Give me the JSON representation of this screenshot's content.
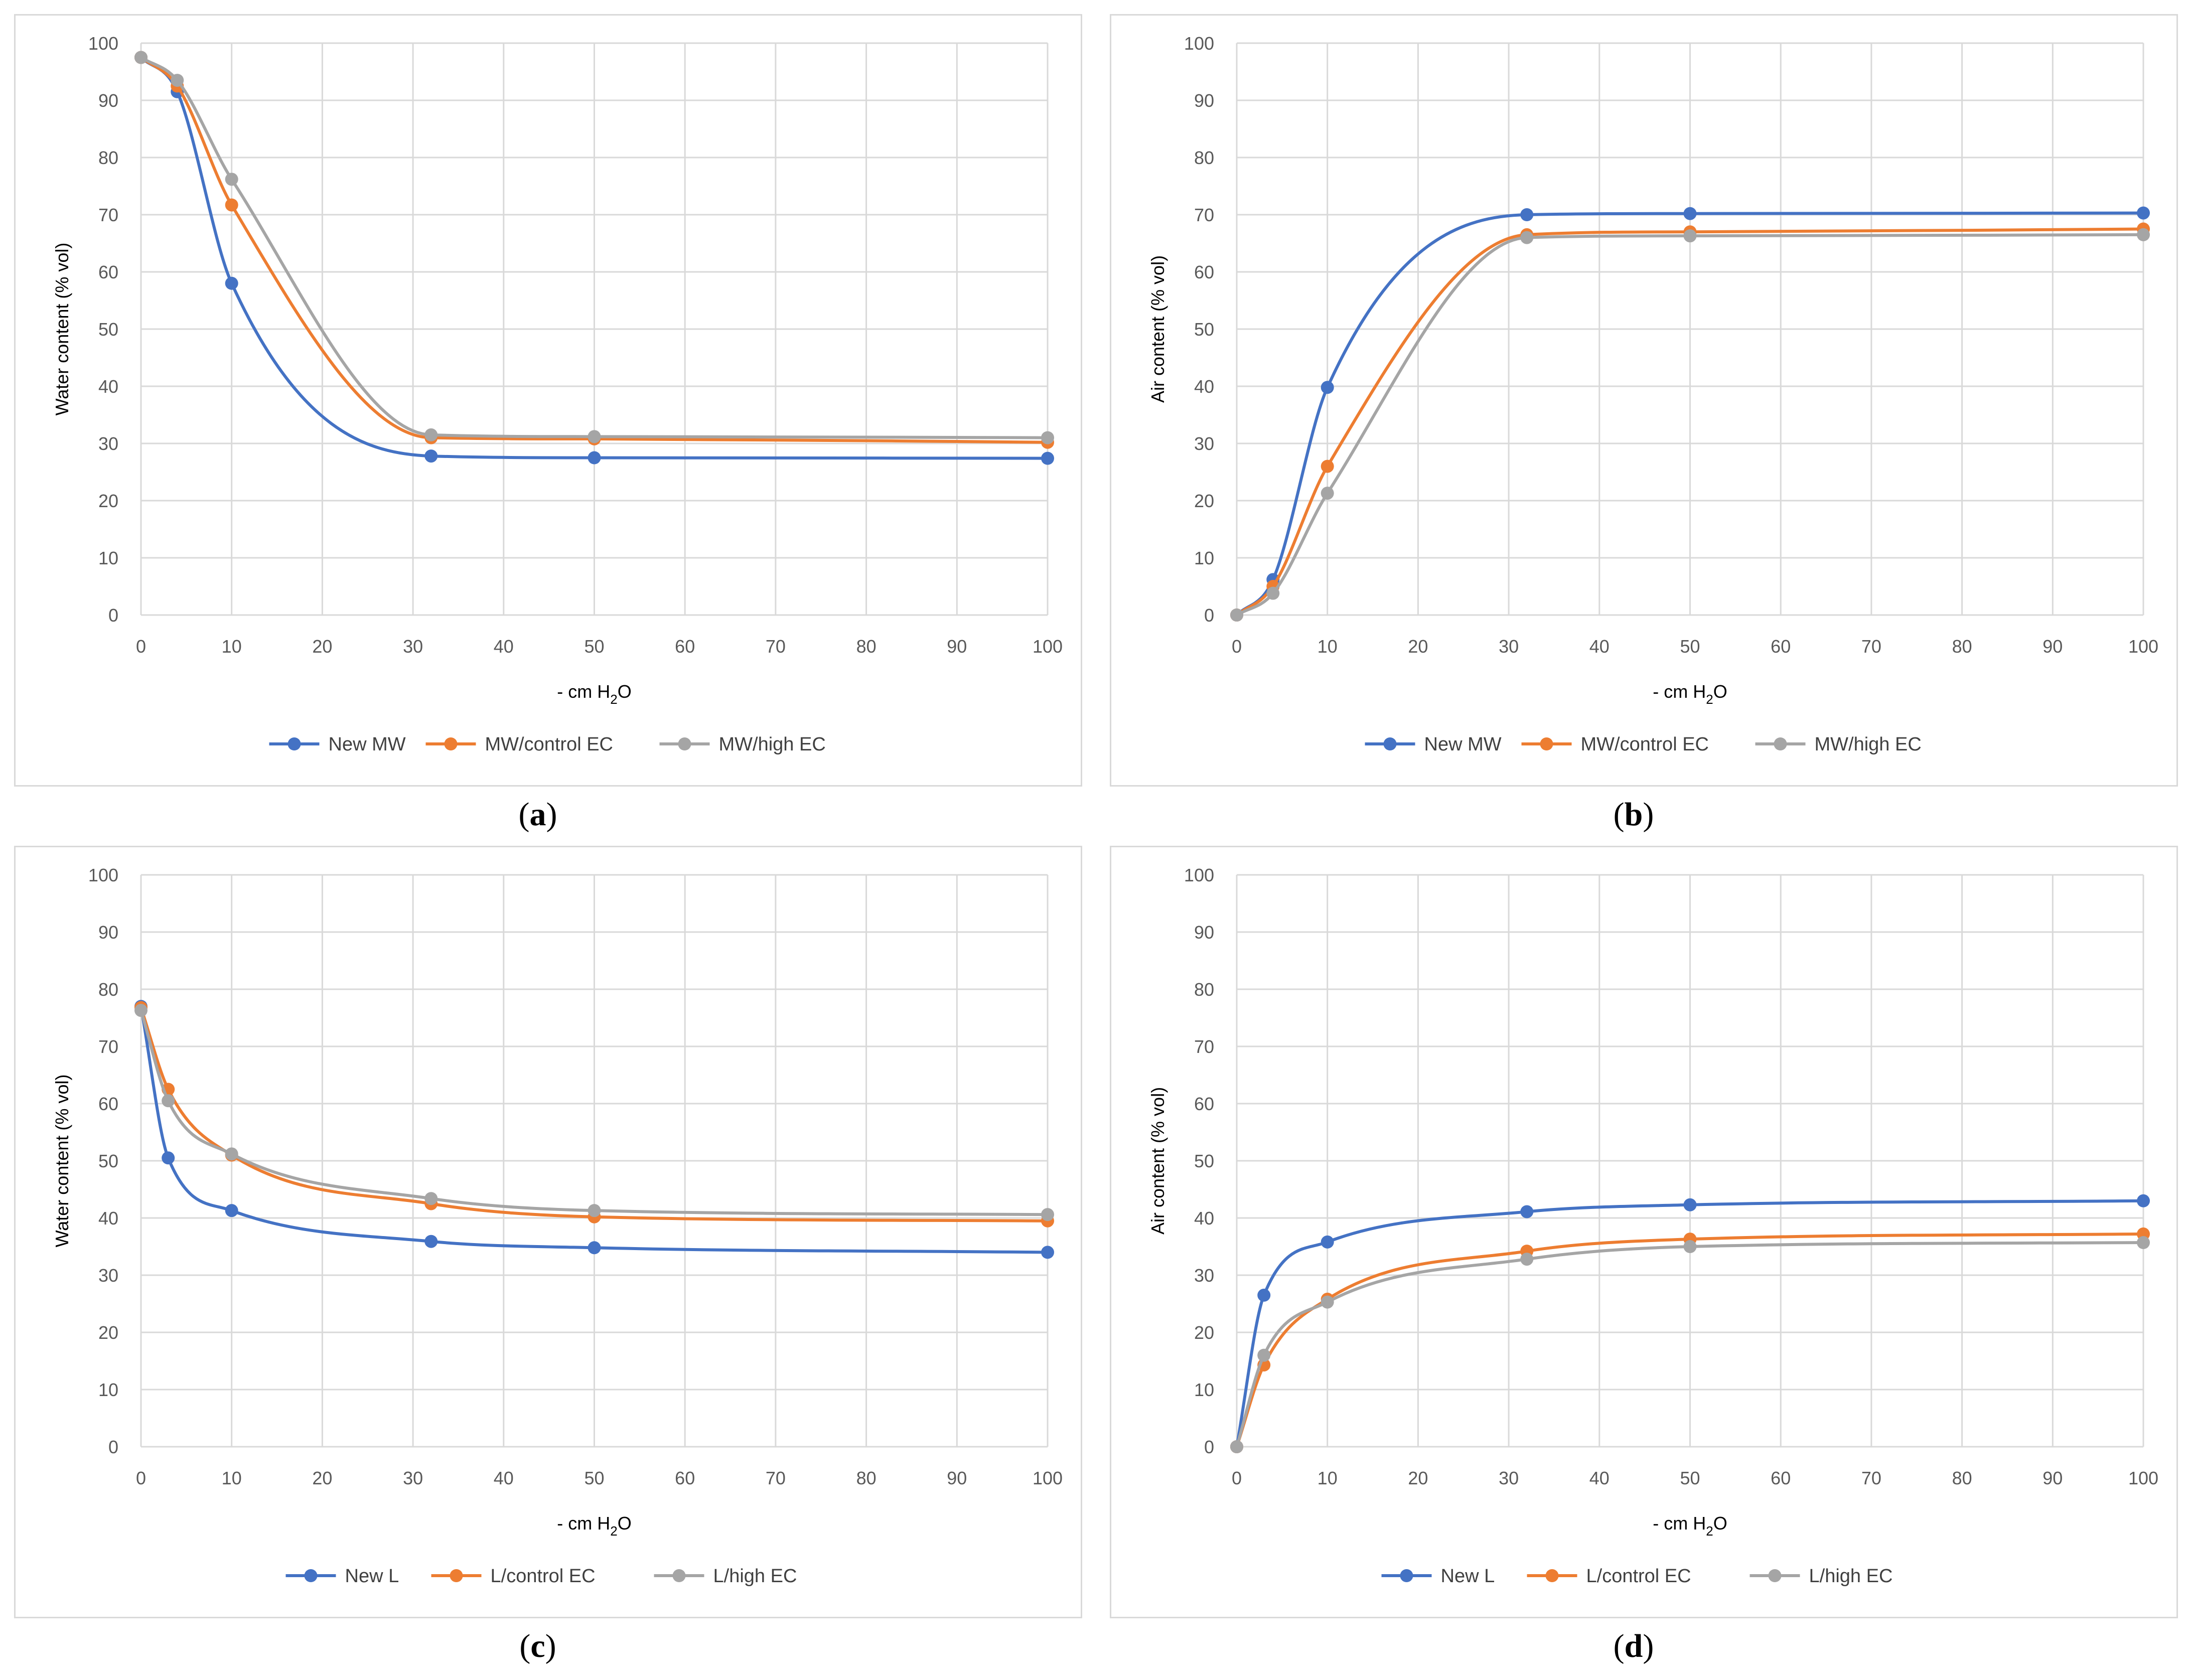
{
  "colors": {
    "series1": "#4472C4",
    "series2": "#ED7D31",
    "series3": "#A5A5A5",
    "grid": "#D9D9D9"
  },
  "chart_data": [
    {
      "type": "line",
      "panel_label": "a",
      "xlabel": "- cm H",
      "xlabel_sub": "2",
      "xlabel_end": "O",
      "ylabel": "Water content (% vol)",
      "xlim": [
        0,
        100
      ],
      "ylim": [
        0,
        100
      ],
      "xticks": [
        0,
        10,
        20,
        30,
        40,
        50,
        60,
        70,
        80,
        90,
        100
      ],
      "yticks": [
        0,
        10,
        20,
        30,
        40,
        50,
        60,
        70,
        80,
        90,
        100
      ],
      "x": [
        0,
        4,
        10,
        32,
        50,
        100
      ],
      "series": [
        {
          "name": "New MW",
          "values": [
            97.5,
            91.5,
            58.0,
            27.8,
            27.5,
            27.4
          ]
        },
        {
          "name": "MW/control EC",
          "values": [
            97.5,
            92.5,
            71.7,
            31.0,
            30.8,
            30.2
          ]
        },
        {
          "name": "MW/high EC",
          "values": [
            97.5,
            93.5,
            76.2,
            31.5,
            31.2,
            31.0
          ]
        }
      ]
    },
    {
      "type": "line",
      "panel_label": "b",
      "xlabel": "- cm H",
      "xlabel_sub": "2",
      "xlabel_end": "O",
      "ylabel": "Air content (% vol)",
      "xlim": [
        0,
        100
      ],
      "ylim": [
        0,
        100
      ],
      "xticks": [
        0,
        10,
        20,
        30,
        40,
        50,
        60,
        70,
        80,
        90,
        100
      ],
      "yticks": [
        0,
        10,
        20,
        30,
        40,
        50,
        60,
        70,
        80,
        90,
        100
      ],
      "x": [
        0,
        4,
        10,
        32,
        50,
        100
      ],
      "series": [
        {
          "name": "New MW",
          "values": [
            0,
            6.2,
            39.8,
            70.0,
            70.2,
            70.3
          ]
        },
        {
          "name": "MW/control EC",
          "values": [
            0,
            5.0,
            26.0,
            66.5,
            67.0,
            67.5
          ]
        },
        {
          "name": "MW/high EC",
          "values": [
            0,
            3.8,
            21.3,
            66.0,
            66.3,
            66.5
          ]
        }
      ]
    },
    {
      "type": "line",
      "panel_label": "c",
      "xlabel": "- cm H",
      "xlabel_sub": "2",
      "xlabel_end": "O",
      "ylabel": "Water content (% vol)",
      "xlim": [
        0,
        100
      ],
      "ylim": [
        0,
        100
      ],
      "xticks": [
        0,
        10,
        20,
        30,
        40,
        50,
        60,
        70,
        80,
        90,
        100
      ],
      "yticks": [
        0,
        10,
        20,
        30,
        40,
        50,
        60,
        70,
        80,
        90,
        100
      ],
      "x": [
        0,
        3,
        10,
        32,
        50,
        100
      ],
      "series": [
        {
          "name": "New L",
          "values": [
            77.0,
            50.5,
            41.3,
            35.9,
            34.8,
            34.0
          ]
        },
        {
          "name": "L/control EC",
          "values": [
            76.8,
            62.5,
            51.0,
            42.5,
            40.2,
            39.5
          ]
        },
        {
          "name": "L/high EC",
          "values": [
            76.3,
            60.5,
            51.2,
            43.4,
            41.3,
            40.6
          ]
        }
      ]
    },
    {
      "type": "line",
      "panel_label": "d",
      "xlabel": "- cm H",
      "xlabel_sub": "2",
      "xlabel_end": "O",
      "ylabel": "Air content (% vol)",
      "xlim": [
        0,
        100
      ],
      "ylim": [
        0,
        100
      ],
      "xticks": [
        0,
        10,
        20,
        30,
        40,
        50,
        60,
        70,
        80,
        90,
        100
      ],
      "yticks": [
        0,
        10,
        20,
        30,
        40,
        50,
        60,
        70,
        80,
        90,
        100
      ],
      "x": [
        0,
        3,
        10,
        32,
        50,
        100
      ],
      "series": [
        {
          "name": "New L",
          "values": [
            0,
            26.5,
            35.8,
            41.1,
            42.3,
            43.0
          ]
        },
        {
          "name": "L/control EC",
          "values": [
            0,
            14.3,
            25.8,
            34.2,
            36.3,
            37.2
          ]
        },
        {
          "name": "L/high EC",
          "values": [
            0,
            16.0,
            25.3,
            32.8,
            35.0,
            35.7
          ]
        }
      ]
    }
  ]
}
